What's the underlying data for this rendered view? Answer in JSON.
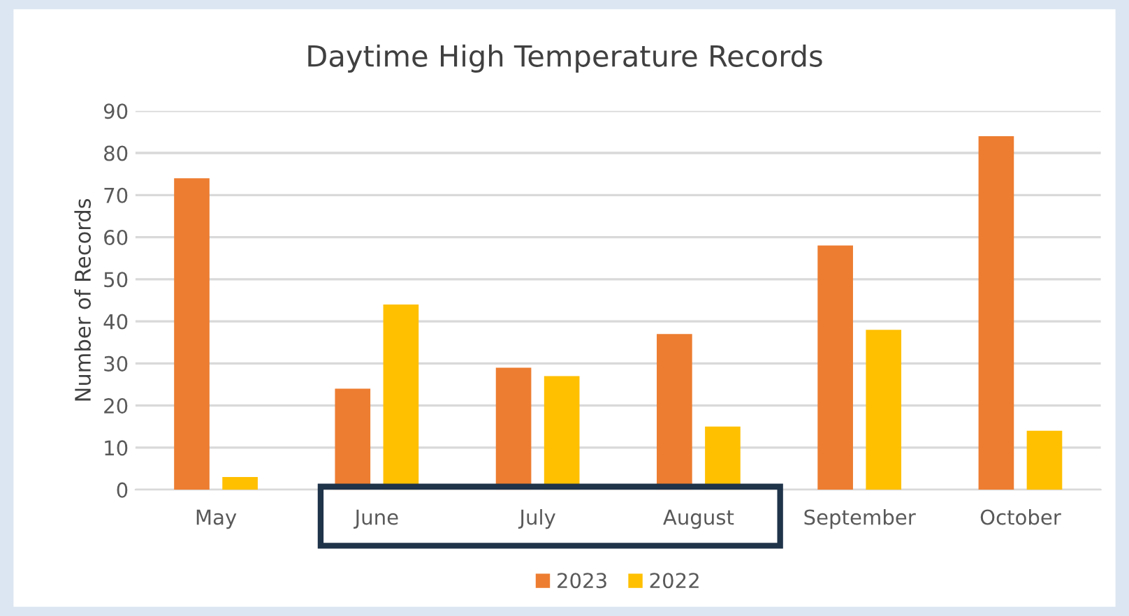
{
  "chart_data": {
    "type": "bar",
    "title": "Daytime High Temperature Records",
    "ylabel": "Number of Records",
    "categories": [
      "May",
      "June",
      "July",
      "August",
      "September",
      "October"
    ],
    "series": [
      {
        "name": "2023",
        "color": "#ed7d31",
        "values": [
          74,
          24,
          29,
          37,
          58,
          84
        ]
      },
      {
        "name": "2022",
        "color": "#ffc000",
        "values": [
          3,
          44,
          27,
          15,
          38,
          14
        ]
      }
    ],
    "ylim": [
      0,
      90
    ],
    "yticks": [
      0,
      10,
      20,
      30,
      40,
      50,
      60,
      70,
      80,
      90
    ],
    "grid": "y",
    "legend": "bottom"
  }
}
